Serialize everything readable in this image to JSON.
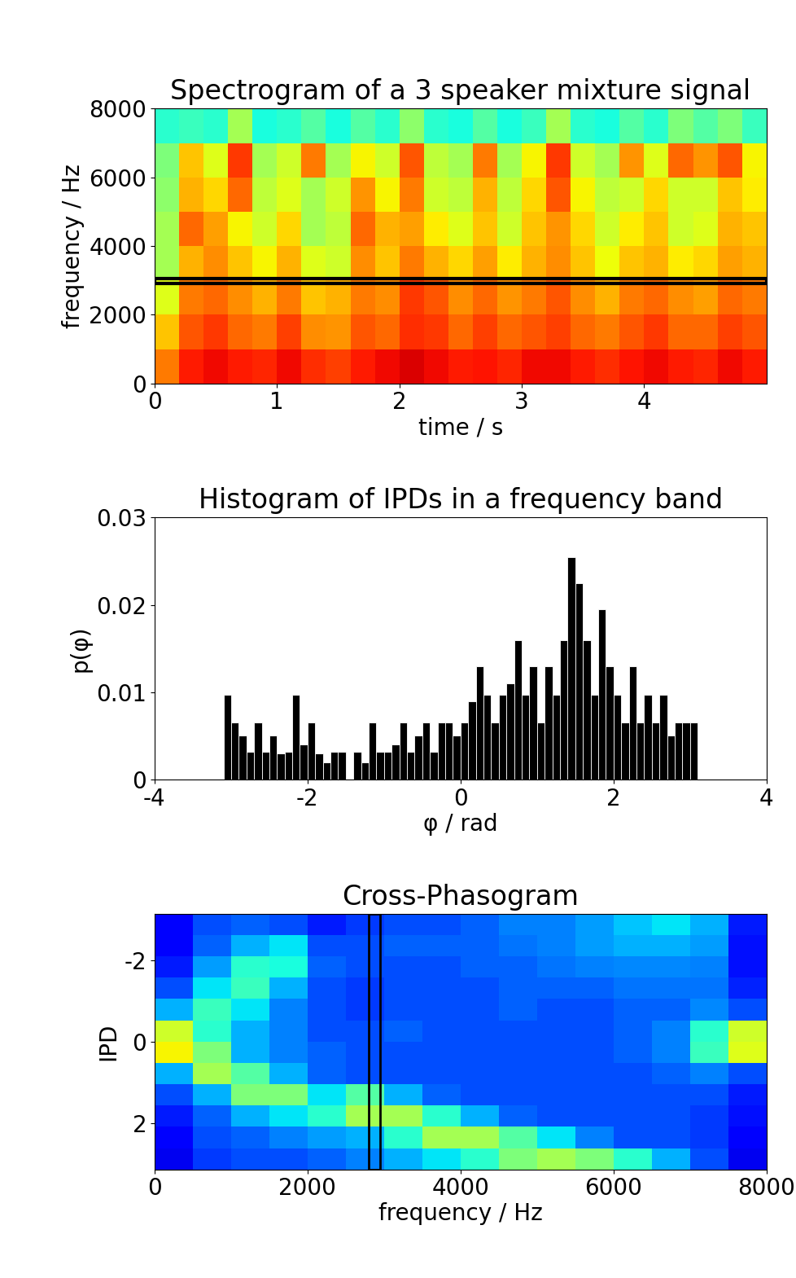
{
  "chart_data": [
    {
      "type": "heatmap",
      "title": "Spectrogram of a 3 speaker mixture signal",
      "x_label": "time / s",
      "y_label": "frequency / Hz",
      "xlim": [
        0,
        5
      ],
      "ylim": [
        0,
        8000
      ],
      "xticks": [
        0,
        1,
        2,
        3,
        4
      ],
      "yticks": [
        0,
        2000,
        4000,
        6000,
        8000
      ],
      "x_edges": [
        0,
        0.2,
        0.4,
        0.6,
        0.8,
        1.0,
        1.2,
        1.4,
        1.6,
        1.8,
        2.0,
        2.2,
        2.4,
        2.6,
        2.8,
        3.0,
        3.2,
        3.4,
        3.6,
        3.8,
        4.0,
        4.2,
        4.4,
        4.6,
        4.8,
        5.0
      ],
      "y_edges": [
        0,
        1000,
        2000,
        3000,
        4000,
        5000,
        6000,
        7000,
        8000
      ],
      "color_range": [
        0,
        1
      ],
      "highlight_y": [
        2900,
        3050
      ],
      "cells": [
        [
          0.78,
          0.88,
          0.9,
          0.88,
          0.87,
          0.9,
          0.86,
          0.84,
          0.88,
          0.9,
          0.92,
          0.9,
          0.88,
          0.89,
          0.87,
          0.9,
          0.9,
          0.88,
          0.86,
          0.89,
          0.9,
          0.88,
          0.87,
          0.9,
          0.88
        ],
        [
          0.7,
          0.82,
          0.85,
          0.8,
          0.78,
          0.84,
          0.76,
          0.75,
          0.82,
          0.8,
          0.86,
          0.85,
          0.8,
          0.84,
          0.8,
          0.82,
          0.84,
          0.8,
          0.78,
          0.82,
          0.85,
          0.8,
          0.8,
          0.84,
          0.82
        ],
        [
          0.62,
          0.78,
          0.8,
          0.76,
          0.72,
          0.78,
          0.7,
          0.72,
          0.78,
          0.76,
          0.85,
          0.82,
          0.76,
          0.8,
          0.75,
          0.78,
          0.82,
          0.76,
          0.72,
          0.78,
          0.8,
          0.76,
          0.74,
          0.8,
          0.78
        ],
        [
          0.55,
          0.72,
          0.76,
          0.7,
          0.65,
          0.72,
          0.62,
          0.6,
          0.76,
          0.7,
          0.78,
          0.72,
          0.68,
          0.74,
          0.66,
          0.72,
          0.76,
          0.7,
          0.64,
          0.7,
          0.72,
          0.66,
          0.68,
          0.74,
          0.72
        ],
        [
          0.55,
          0.8,
          0.74,
          0.65,
          0.6,
          0.68,
          0.55,
          0.58,
          0.8,
          0.72,
          0.74,
          0.66,
          0.62,
          0.7,
          0.6,
          0.7,
          0.75,
          0.68,
          0.6,
          0.66,
          0.7,
          0.6,
          0.62,
          0.72,
          0.7
        ],
        [
          0.52,
          0.72,
          0.68,
          0.8,
          0.58,
          0.62,
          0.55,
          0.6,
          0.75,
          0.65,
          0.78,
          0.6,
          0.58,
          0.72,
          0.58,
          0.68,
          0.82,
          0.65,
          0.58,
          0.6,
          0.68,
          0.6,
          0.6,
          0.7,
          0.66
        ],
        [
          0.5,
          0.7,
          0.62,
          0.85,
          0.55,
          0.6,
          0.78,
          0.55,
          0.65,
          0.6,
          0.82,
          0.58,
          0.55,
          0.78,
          0.55,
          0.65,
          0.85,
          0.6,
          0.55,
          0.75,
          0.62,
          0.8,
          0.75,
          0.82,
          0.65
        ],
        [
          0.4,
          0.42,
          0.4,
          0.55,
          0.38,
          0.4,
          0.45,
          0.38,
          0.45,
          0.4,
          0.52,
          0.4,
          0.38,
          0.45,
          0.38,
          0.42,
          0.55,
          0.4,
          0.38,
          0.45,
          0.4,
          0.5,
          0.45,
          0.5,
          0.42
        ]
      ]
    },
    {
      "type": "histogram",
      "title": "Histogram of IPDs in a frequency band",
      "x_label": "φ / rad",
      "y_label": "p(φ)",
      "xlim": [
        -4,
        4
      ],
      "ylim": [
        0,
        0.03
      ],
      "xticks": [
        -4,
        -2,
        0,
        2,
        4
      ],
      "yticks": [
        0,
        0.01,
        0.02,
        0.03
      ],
      "color": "#000000",
      "bins": [
        -3.1,
        -3.0,
        -2.9,
        -2.8,
        -2.7,
        -2.6,
        -2.5,
        -2.4,
        -2.3,
        -2.2,
        -2.1,
        -2.0,
        -1.9,
        -1.8,
        -1.7,
        -1.6,
        -1.5,
        -1.4,
        -1.3,
        -1.2,
        -1.1,
        -1.0,
        -0.9,
        -0.8,
        -0.7,
        -0.6,
        -0.5,
        -0.4,
        -0.3,
        -0.2,
        -0.1,
        0.0,
        0.1,
        0.2,
        0.3,
        0.4,
        0.5,
        0.6,
        0.7,
        0.8,
        0.9,
        1.0,
        1.1,
        1.2,
        1.3,
        1.4,
        1.5,
        1.6,
        1.7,
        1.8,
        1.9,
        2.0,
        2.1,
        2.2,
        2.3,
        2.4,
        2.5,
        2.6,
        2.7,
        2.8,
        2.9,
        3.0,
        3.1
      ],
      "values": [
        0.0097,
        0.0065,
        0.005,
        0.0032,
        0.0065,
        0.0032,
        0.005,
        0.003,
        0.0032,
        0.0097,
        0.004,
        0.0065,
        0.003,
        0.002,
        0.0032,
        0.0032,
        0.0,
        0.0032,
        0.002,
        0.0065,
        0.0032,
        0.0032,
        0.004,
        0.0065,
        0.0032,
        0.005,
        0.0065,
        0.0032,
        0.0065,
        0.0065,
        0.005,
        0.0065,
        0.009,
        0.013,
        0.0097,
        0.0065,
        0.0097,
        0.011,
        0.016,
        0.0097,
        0.013,
        0.0065,
        0.013,
        0.0097,
        0.016,
        0.0255,
        0.0225,
        0.016,
        0.0097,
        0.0195,
        0.013,
        0.0097,
        0.0065,
        0.013,
        0.0065,
        0.0097,
        0.0065,
        0.0097,
        0.005,
        0.0065,
        0.0065,
        0.0065
      ]
    },
    {
      "type": "heatmap",
      "title": "Cross-Phasogram",
      "x_label": "frequency / Hz",
      "y_label": "IPD",
      "xlim": [
        0,
        8000
      ],
      "ylim": [
        3.14,
        -3.14
      ],
      "xticks": [
        0,
        2000,
        4000,
        6000,
        8000
      ],
      "yticks": [
        -2,
        0,
        2
      ],
      "x_edges": [
        0,
        500,
        1000,
        1500,
        2000,
        2500,
        3000,
        3500,
        4000,
        4500,
        5000,
        5500,
        6000,
        6500,
        7000,
        7500,
        8000
      ],
      "y_edges": [
        -3.14,
        -2.62,
        -2.09,
        -1.57,
        -1.05,
        -0.52,
        0,
        0.52,
        1.05,
        1.57,
        2.09,
        2.62,
        3.14
      ],
      "color_range": [
        0,
        1
      ],
      "highlight_x": [
        2800,
        2950
      ],
      "cells": [
        [
          0.12,
          0.2,
          0.22,
          0.2,
          0.15,
          0.18,
          0.2,
          0.2,
          0.22,
          0.25,
          0.25,
          0.28,
          0.32,
          0.35,
          0.3,
          0.15
        ],
        [
          0.12,
          0.22,
          0.3,
          0.35,
          0.2,
          0.2,
          0.22,
          0.22,
          0.22,
          0.24,
          0.25,
          0.28,
          0.3,
          0.3,
          0.28,
          0.14
        ],
        [
          0.15,
          0.28,
          0.4,
          0.38,
          0.22,
          0.2,
          0.2,
          0.2,
          0.22,
          0.22,
          0.24,
          0.25,
          0.26,
          0.26,
          0.25,
          0.14
        ],
        [
          0.2,
          0.35,
          0.42,
          0.3,
          0.2,
          0.18,
          0.2,
          0.2,
          0.2,
          0.22,
          0.22,
          0.22,
          0.24,
          0.24,
          0.24,
          0.16
        ],
        [
          0.3,
          0.42,
          0.35,
          0.25,
          0.2,
          0.18,
          0.2,
          0.2,
          0.2,
          0.22,
          0.2,
          0.2,
          0.22,
          0.22,
          0.26,
          0.2
        ],
        [
          0.6,
          0.4,
          0.3,
          0.25,
          0.2,
          0.2,
          0.22,
          0.2,
          0.2,
          0.2,
          0.2,
          0.2,
          0.22,
          0.25,
          0.4,
          0.6
        ],
        [
          0.65,
          0.5,
          0.3,
          0.25,
          0.22,
          0.2,
          0.2,
          0.2,
          0.2,
          0.2,
          0.2,
          0.2,
          0.22,
          0.25,
          0.42,
          0.62
        ],
        [
          0.3,
          0.55,
          0.45,
          0.3,
          0.22,
          0.2,
          0.2,
          0.2,
          0.2,
          0.2,
          0.2,
          0.2,
          0.2,
          0.22,
          0.25,
          0.2
        ],
        [
          0.2,
          0.3,
          0.5,
          0.5,
          0.35,
          0.45,
          0.3,
          0.22,
          0.2,
          0.2,
          0.2,
          0.2,
          0.2,
          0.2,
          0.2,
          0.15
        ],
        [
          0.15,
          0.22,
          0.3,
          0.35,
          0.4,
          0.55,
          0.55,
          0.4,
          0.3,
          0.22,
          0.2,
          0.2,
          0.2,
          0.2,
          0.18,
          0.14
        ],
        [
          0.12,
          0.2,
          0.22,
          0.25,
          0.28,
          0.3,
          0.4,
          0.55,
          0.55,
          0.45,
          0.35,
          0.25,
          0.2,
          0.2,
          0.18,
          0.12
        ],
        [
          0.1,
          0.18,
          0.2,
          0.2,
          0.22,
          0.25,
          0.3,
          0.35,
          0.4,
          0.5,
          0.55,
          0.5,
          0.4,
          0.3,
          0.2,
          0.1
        ]
      ]
    }
  ]
}
